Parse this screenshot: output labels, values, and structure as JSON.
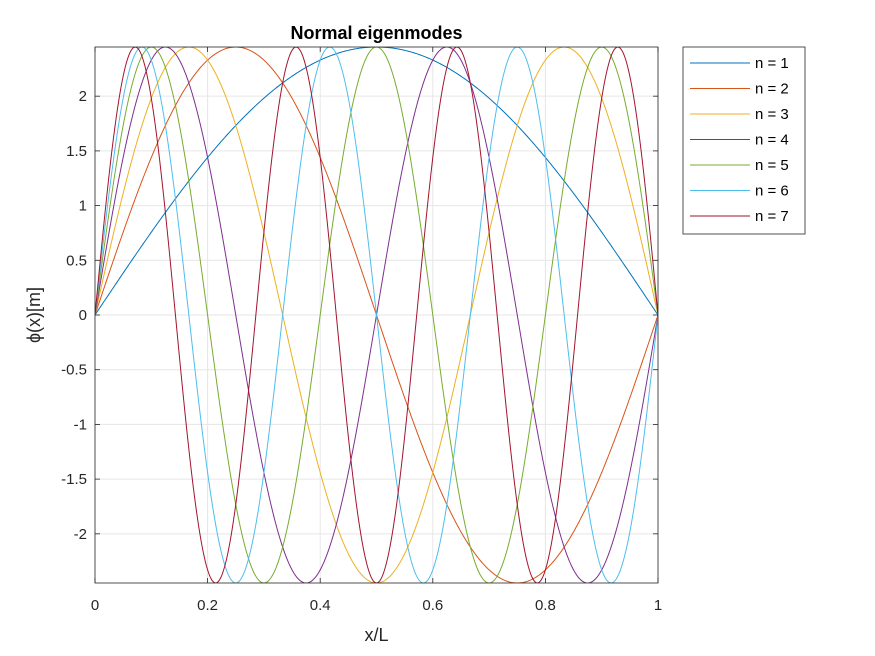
{
  "chart_data": {
    "type": "line",
    "title": "Normal eigenmodes",
    "xlabel": "x/L",
    "ylabel": "ϕ(x)[m]",
    "xlim": [
      0,
      1
    ],
    "ylim": [
      -2.4495,
      2.4495
    ],
    "amplitude": 2.4495,
    "function": "amplitude * sin(n * pi * x)",
    "grid": true,
    "legend_position": "outside-top-right",
    "x_ticks": [
      0,
      0.2,
      0.4,
      0.6,
      0.8,
      1
    ],
    "x_tick_labels": [
      "0",
      "0.2",
      "0.4",
      "0.6",
      "0.8",
      "1"
    ],
    "y_ticks": [
      -2,
      -1.5,
      -1,
      -0.5,
      0,
      0.5,
      1,
      1.5,
      2
    ],
    "y_tick_labels": [
      "-2",
      "-1.5",
      "-1",
      "-0.5",
      "0",
      "0.5",
      "1",
      "1.5",
      "2"
    ],
    "series": [
      {
        "name": "n = 1",
        "n": 1,
        "color": "#0072BD"
      },
      {
        "name": "n = 2",
        "n": 2,
        "color": "#D95319"
      },
      {
        "name": "n = 3",
        "n": 3,
        "color": "#EDB120"
      },
      {
        "name": "n = 4",
        "n": 4,
        "color": "#7E2F8E"
      },
      {
        "name": "n = 5",
        "n": 5,
        "color": "#77AC30"
      },
      {
        "name": "n = 6",
        "n": 6,
        "color": "#4DBEEE"
      },
      {
        "name": "n = 7",
        "n": 7,
        "color": "#A2142F"
      }
    ]
  }
}
